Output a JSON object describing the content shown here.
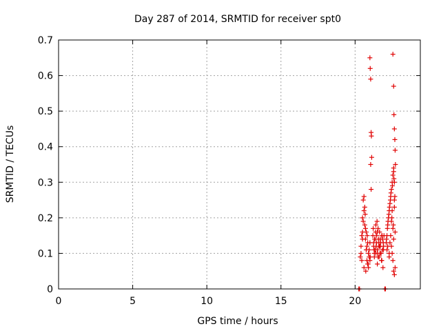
{
  "chart_data": {
    "type": "scatter",
    "title": "Day 287 of 2014, SRMTID for receiver spt0",
    "xlabel": "GPS time / hours",
    "ylabel": "SRMTID / TECUs",
    "xlim": [
      0,
      24.4
    ],
    "ylim": [
      0,
      0.7
    ],
    "xticks": [
      0,
      5,
      10,
      15,
      20
    ],
    "xtick_labels": [
      "0",
      "5",
      "10",
      "15",
      "20"
    ],
    "yticks": [
      0,
      0.1,
      0.2,
      0.3,
      0.4,
      0.5,
      0.6,
      0.7
    ],
    "ytick_labels": [
      "0",
      "0.1",
      "0.2",
      "0.3",
      "0.4",
      "0.5",
      "0.6",
      "0.7"
    ],
    "grid": true,
    "marker": "+",
    "color": "#e00000",
    "series": [
      {
        "name": "spt0",
        "x": [
          20.25,
          20.3,
          22.0,
          22.05,
          20.35,
          20.4,
          20.45,
          20.5,
          20.55,
          20.6,
          20.65,
          20.7,
          20.75,
          20.8,
          20.85,
          20.9,
          20.95,
          21.0,
          20.4,
          20.5,
          20.6,
          20.7,
          20.8,
          20.9,
          21.0,
          20.55,
          20.65,
          20.75,
          20.85,
          20.95,
          20.45,
          20.6,
          20.72,
          20.88,
          21.02,
          20.5,
          20.68,
          20.82,
          21.0,
          21.02,
          21.05,
          21.08,
          21.1,
          21.12,
          21.05,
          21.08,
          21.2,
          21.25,
          21.3,
          21.35,
          21.4,
          21.45,
          21.5,
          21.55,
          21.6,
          21.65,
          21.7,
          21.75,
          21.8,
          21.85,
          21.9,
          21.95,
          21.22,
          21.32,
          21.42,
          21.52,
          21.62,
          21.72,
          21.82,
          21.92,
          21.28,
          21.38,
          21.48,
          21.58,
          21.68,
          21.78,
          21.88,
          21.25,
          21.35,
          21.45,
          21.55,
          21.65,
          21.75,
          21.85,
          21.3,
          21.5,
          21.7,
          21.9,
          21.4,
          21.6,
          21.8,
          21.5,
          21.7,
          22.1,
          22.15,
          22.2,
          22.25,
          22.3,
          22.35,
          22.4,
          22.45,
          22.5,
          22.55,
          22.6,
          22.65,
          22.7,
          22.12,
          22.22,
          22.32,
          22.42,
          22.52,
          22.62,
          22.18,
          22.28,
          22.38,
          22.48,
          22.58,
          22.68,
          22.2,
          22.3,
          22.4,
          22.5,
          22.6,
          22.15,
          22.35,
          22.55,
          22.45,
          22.65,
          22.55,
          22.6,
          22.62,
          22.65,
          22.68,
          22.7,
          22.72,
          22.6,
          22.65,
          22.6,
          22.65,
          22.7,
          22.55,
          22.5,
          22.45,
          22.3
        ],
        "y": [
          0.0,
          0.0,
          0.0,
          0.0,
          0.09,
          0.12,
          0.15,
          0.2,
          0.25,
          0.26,
          0.18,
          0.14,
          0.11,
          0.08,
          0.07,
          0.06,
          0.09,
          0.13,
          0.1,
          0.14,
          0.22,
          0.17,
          0.12,
          0.1,
          0.08,
          0.19,
          0.23,
          0.16,
          0.13,
          0.11,
          0.08,
          0.06,
          0.05,
          0.07,
          0.09,
          0.16,
          0.21,
          0.15,
          0.65,
          0.62,
          0.59,
          0.44,
          0.43,
          0.37,
          0.35,
          0.28,
          0.15,
          0.12,
          0.1,
          0.14,
          0.18,
          0.13,
          0.11,
          0.09,
          0.12,
          0.16,
          0.14,
          0.1,
          0.08,
          0.11,
          0.13,
          0.15,
          0.17,
          0.14,
          0.12,
          0.1,
          0.09,
          0.13,
          0.15,
          0.12,
          0.11,
          0.16,
          0.19,
          0.14,
          0.1,
          0.08,
          0.06,
          0.13,
          0.11,
          0.15,
          0.17,
          0.12,
          0.1,
          0.14,
          0.09,
          0.16,
          0.12,
          0.11,
          0.1,
          0.13,
          0.15,
          0.07,
          0.12,
          0.13,
          0.15,
          0.18,
          0.2,
          0.22,
          0.24,
          0.26,
          0.28,
          0.3,
          0.32,
          0.34,
          0.25,
          0.16,
          0.14,
          0.19,
          0.23,
          0.27,
          0.29,
          0.31,
          0.17,
          0.21,
          0.25,
          0.2,
          0.18,
          0.26,
          0.12,
          0.1,
          0.15,
          0.22,
          0.14,
          0.11,
          0.13,
          0.17,
          0.19,
          0.23,
          0.66,
          0.57,
          0.49,
          0.45,
          0.42,
          0.39,
          0.35,
          0.33,
          0.3,
          0.05,
          0.04,
          0.06,
          0.08,
          0.1,
          0.12,
          0.09
        ]
      }
    ]
  }
}
